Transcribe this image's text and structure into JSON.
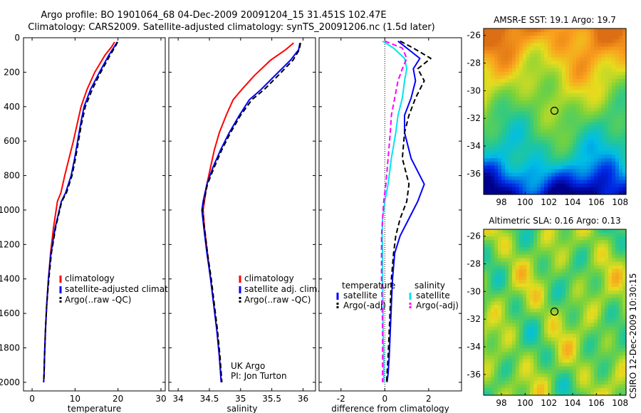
{
  "header": {
    "line1": "Argo profile: BO 1901064_68 04-Dec-2009 20091204_15 31.451S 102.47E",
    "line2": "Climatology: CARS2009. Satellite-adjusted climatology: synTS_20091206.nc (1.5d later)"
  },
  "footer": {
    "credit": "CSIRO 12-Dec-2009 10:30:15",
    "org": "UK Argo",
    "pi": "PI: Jon Turton"
  },
  "chart_data": [
    {
      "type": "line",
      "xlabel": "temperature",
      "xlim": [
        -2,
        31
      ],
      "ylim": [
        0,
        2050
      ],
      "xticks": [
        0,
        10,
        20,
        30
      ],
      "yticks": [
        0,
        200,
        400,
        600,
        800,
        1000,
        1200,
        1400,
        1600,
        1800,
        2000
      ],
      "legend": [
        "climatology",
        "satellite-adjusted climatology",
        "Argo(..raw -QC)"
      ],
      "series": [
        {
          "name": "climatology",
          "color": "#ff0000",
          "style": "solid",
          "x": [
            19.2,
            18.6,
            17.0,
            14.6,
            12.8,
            11.4,
            10.5,
            9.6,
            8.6,
            7.6,
            6.7,
            5.9,
            5.0,
            4.3,
            3.8,
            3.4,
            3.1,
            2.9,
            2.8,
            2.7
          ],
          "y": [
            25,
            50,
            100,
            200,
            300,
            400,
            500,
            600,
            700,
            800,
            900,
            950,
            1100,
            1250,
            1400,
            1550,
            1700,
            1850,
            1950,
            2000
          ]
        },
        {
          "name": "satellite-adjusted climatology",
          "color": "#0000ff",
          "style": "solid",
          "x": [
            19.8,
            19.2,
            17.9,
            15.7,
            13.6,
            12.1,
            11.3,
            10.6,
            9.9,
            9.1,
            7.8,
            6.8,
            5.4,
            4.4,
            3.8,
            3.4,
            3.1,
            2.9,
            2.8,
            2.7
          ],
          "y": [
            25,
            50,
            100,
            200,
            300,
            400,
            500,
            600,
            700,
            800,
            900,
            950,
            1100,
            1250,
            1400,
            1550,
            1700,
            1850,
            1950,
            2000
          ]
        },
        {
          "name": "Argo(..raw -QC)",
          "color": "#000000",
          "style": "dashed",
          "x": [
            19.9,
            19.4,
            18.2,
            16.0,
            14.0,
            12.4,
            11.5,
            10.8,
            10.1,
            9.3,
            8.0,
            6.9,
            5.5,
            4.5,
            3.9,
            3.4,
            3.1,
            2.9,
            2.8,
            2.7
          ],
          "y": [
            25,
            50,
            100,
            200,
            300,
            400,
            500,
            600,
            700,
            800,
            900,
            950,
            1100,
            1250,
            1400,
            1550,
            1700,
            1850,
            1950,
            2000
          ]
        }
      ]
    },
    {
      "type": "line",
      "xlabel": "salinity",
      "xlim": [
        33.85,
        36.2
      ],
      "ylim": [
        0,
        2050
      ],
      "xticks": [
        34,
        34.5,
        35,
        35.5,
        36
      ],
      "legend": [
        "climatology",
        "satellite adj. clim.",
        "Argo(..raw -QC)"
      ],
      "series": [
        {
          "name": "climatology",
          "color": "#ff0000",
          "style": "solid",
          "x": [
            35.85,
            35.72,
            35.48,
            35.22,
            35.02,
            34.88,
            34.77,
            34.66,
            34.58,
            34.52,
            34.46,
            34.42,
            34.4,
            34.42,
            34.47,
            34.52,
            34.57,
            34.62,
            34.66,
            34.69
          ],
          "y": [
            30,
            70,
            130,
            220,
            300,
            360,
            450,
            550,
            650,
            750,
            850,
            950,
            1000,
            1100,
            1250,
            1400,
            1550,
            1700,
            1850,
            2000
          ]
        },
        {
          "name": "satellite adj. clim.",
          "color": "#0000ff",
          "style": "solid",
          "x": [
            35.95,
            35.93,
            35.8,
            35.55,
            35.33,
            35.14,
            34.98,
            34.82,
            34.68,
            34.56,
            34.46,
            34.4,
            34.38,
            34.41,
            34.46,
            34.52,
            34.57,
            34.62,
            34.66,
            34.69
          ],
          "y": [
            30,
            70,
            130,
            220,
            300,
            360,
            450,
            550,
            650,
            750,
            850,
            950,
            1000,
            1100,
            1250,
            1400,
            1550,
            1700,
            1850,
            2000
          ]
        },
        {
          "name": "Argo(..raw -QC)",
          "color": "#000000",
          "style": "dashed",
          "x": [
            35.96,
            35.94,
            35.84,
            35.6,
            35.38,
            35.18,
            35.0,
            34.84,
            34.7,
            34.58,
            34.47,
            34.41,
            34.39,
            34.42,
            34.47,
            34.53,
            34.58,
            34.63,
            34.67,
            34.7
          ],
          "y": [
            30,
            70,
            130,
            220,
            300,
            360,
            450,
            550,
            650,
            750,
            850,
            950,
            1000,
            1100,
            1250,
            1400,
            1550,
            1700,
            1850,
            2000
          ]
        }
      ]
    },
    {
      "type": "line",
      "xlabel": "difference from climatology",
      "xlim": [
        -3,
        3.5
      ],
      "xticks": [
        -2,
        0,
        2
      ],
      "legend_titles": [
        "temperature",
        "salinity"
      ],
      "legend": [
        "satellite",
        "Argo(-adj)",
        "satellite",
        "Argo(-adj)"
      ],
      "series": [
        {
          "name": "satellite",
          "color": "#0000ff",
          "style": "solid",
          "group": "temperature",
          "x": [
            0.6,
            1.0,
            1.6,
            1.3,
            1.4,
            1.2,
            0.9,
            0.9,
            1.2,
            1.8,
            1.5,
            1.1,
            0.7,
            0.45,
            0.35,
            0.3,
            0.25,
            0.2,
            0.15,
            0.1
          ],
          "y": [
            20,
            60,
            120,
            180,
            250,
            350,
            450,
            550,
            700,
            850,
            950,
            1050,
            1150,
            1250,
            1400,
            1550,
            1700,
            1850,
            1950,
            2000
          ]
        },
        {
          "name": "Argo(-adj)",
          "color": "#000000",
          "style": "dashed",
          "group": "temperature",
          "x": [
            0.7,
            1.3,
            2.1,
            1.5,
            1.8,
            1.4,
            1.1,
            0.9,
            0.8,
            1.1,
            1.0,
            0.7,
            0.5,
            0.4,
            0.3,
            0.25,
            0.2,
            0.15,
            0.1,
            0.08
          ],
          "y": [
            20,
            60,
            120,
            180,
            250,
            350,
            450,
            550,
            700,
            850,
            950,
            1050,
            1150,
            1250,
            1400,
            1550,
            1700,
            1850,
            1950,
            2000
          ]
        },
        {
          "name": "satellite",
          "color": "#00e5ee",
          "style": "solid",
          "group": "salinity",
          "x": [
            -0.1,
            0.4,
            0.9,
            1.0,
            0.9,
            0.8,
            0.6,
            0.5,
            0.3,
            0.15,
            0.0,
            -0.1,
            -0.12,
            -0.1,
            -0.1,
            -0.08,
            -0.08,
            -0.05,
            -0.05,
            -0.05
          ],
          "y": [
            20,
            60,
            120,
            180,
            250,
            350,
            450,
            550,
            700,
            850,
            950,
            1050,
            1150,
            1250,
            1400,
            1550,
            1700,
            1850,
            1950,
            2000
          ]
        },
        {
          "name": "Argo(-adj)",
          "color": "#ff00ff",
          "style": "dashed",
          "group": "salinity",
          "x": [
            0.0,
            0.8,
            1.0,
            0.8,
            0.6,
            0.45,
            0.3,
            0.25,
            0.15,
            0.05,
            -0.05,
            -0.1,
            -0.15,
            -0.15,
            -0.15,
            -0.12,
            -0.1,
            -0.1,
            -0.1,
            -0.1
          ],
          "y": [
            20,
            60,
            120,
            180,
            250,
            350,
            450,
            550,
            700,
            850,
            950,
            1050,
            1150,
            1250,
            1400,
            1550,
            1700,
            1850,
            1950,
            2000
          ]
        }
      ]
    },
    {
      "type": "heatmap",
      "title": "AMSR-E SST: 19.1 Argo: 19.7",
      "xlim": [
        96.5,
        108.5
      ],
      "ylim": [
        -37.5,
        -25.5
      ],
      "xticks": [
        98,
        100,
        102,
        104,
        106,
        108
      ],
      "yticks": [
        -26,
        -28,
        -30,
        -32,
        -34,
        -36
      ],
      "marker": {
        "lon": 102.47,
        "lat": -31.45
      },
      "field": "sst"
    },
    {
      "type": "heatmap",
      "title": "Altimetric SLA: 0.16 Argo: 0.13",
      "xlim": [
        96.5,
        108.5
      ],
      "ylim": [
        -37.5,
        -25.5
      ],
      "xticks": [
        98,
        100,
        102,
        104,
        106,
        108
      ],
      "yticks": [
        -26,
        -28,
        -30,
        -32,
        -34,
        -36
      ],
      "marker": {
        "lon": 102.47,
        "lat": -31.45
      },
      "field": "sla"
    }
  ]
}
